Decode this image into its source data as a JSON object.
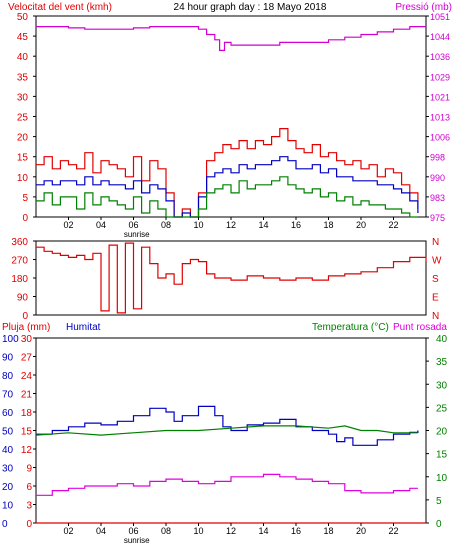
{
  "header": {
    "left_title": "Velocitat del vent (kmh)",
    "center_title": "24 hour graph day : 18 Mayo 2018",
    "right_title": "Pressió (mb)"
  },
  "colors": {
    "wind": "#e00000",
    "gust_green": "#008000",
    "blue": "#0000c0",
    "pressure": "#d000d0",
    "rain": "#e00000",
    "temp": "#008000",
    "dew": "#e000e0",
    "axis": "#000000"
  },
  "chart_data": [
    {
      "type": "line",
      "name": "wind-pressure",
      "ylabel": "Velocitat del vent (kmh)",
      "y_ticks": [
        "0",
        "5",
        "10",
        "15",
        "20",
        "25",
        "30",
        "35",
        "40",
        "45",
        "50"
      ],
      "ylim": [
        0,
        50
      ],
      "y2label": "Pressió (mb)",
      "y2_ticks": [
        "975",
        "983",
        "990",
        "998",
        "1006",
        "1013",
        "1021",
        "1029",
        "1036",
        "1044",
        "1051"
      ],
      "y2lim": [
        975,
        1051
      ],
      "x_ticks": [
        "02",
        "04",
        "06",
        "08",
        "10",
        "12",
        "14",
        "16",
        "18",
        "20",
        "22"
      ],
      "x_extra_label": "sunrise",
      "xlim": [
        0,
        24
      ],
      "series": [
        {
          "role": "wind_gust",
          "color": "red",
          "x": [
            0,
            0.5,
            1,
            1.5,
            2,
            2.5,
            3,
            3.5,
            4,
            4.5,
            5,
            5.5,
            6,
            6.5,
            7,
            7.5,
            8,
            8.5,
            9,
            9.5,
            10,
            10.5,
            11,
            11.5,
            12,
            12.5,
            13,
            13.5,
            14,
            14.5,
            15,
            15.5,
            16,
            16.5,
            17,
            17.5,
            18,
            18.5,
            19,
            19.5,
            20,
            20.5,
            21,
            21.5,
            22,
            22.5,
            23,
            23.5
          ],
          "y": [
            13,
            15,
            12,
            14,
            13,
            12,
            16,
            11,
            14,
            13,
            12,
            10,
            15,
            9,
            14,
            12,
            6,
            0,
            2,
            0,
            6,
            14,
            16,
            18,
            17,
            19,
            17,
            19,
            18,
            20,
            22,
            19,
            17,
            16,
            18,
            15,
            16,
            14,
            13,
            14,
            12,
            13,
            10,
            12,
            11,
            8,
            6,
            2
          ]
        },
        {
          "role": "wind_avg",
          "color": "blue",
          "x": [
            0,
            0.5,
            1,
            1.5,
            2,
            2.5,
            3,
            3.5,
            4,
            4.5,
            5,
            5.5,
            6,
            6.5,
            7,
            7.5,
            8,
            8.5,
            9,
            9.5,
            10,
            10.5,
            11,
            11.5,
            12,
            12.5,
            13,
            13.5,
            14,
            14.5,
            15,
            15.5,
            16,
            16.5,
            17,
            17.5,
            18,
            18.5,
            19,
            19.5,
            20,
            20.5,
            21,
            21.5,
            22,
            22.5,
            23,
            23.5
          ],
          "y": [
            8,
            9,
            8,
            9,
            9,
            8,
            10,
            8,
            9,
            8,
            8,
            7,
            9,
            6,
            8,
            7,
            4,
            0,
            1,
            0,
            5,
            10,
            11,
            12,
            11,
            13,
            12,
            13,
            13,
            14,
            15,
            14,
            12,
            12,
            13,
            11,
            12,
            10,
            10,
            9,
            9,
            9,
            8,
            8,
            7,
            6,
            4,
            1
          ]
        },
        {
          "role": "wind_lull",
          "color": "green",
          "x": [
            0,
            0.5,
            1,
            1.5,
            2,
            2.5,
            3,
            3.5,
            4,
            4.5,
            5,
            5.5,
            6,
            6.5,
            7,
            7.5,
            8,
            8.5,
            9,
            9.5,
            10,
            10.5,
            11,
            11.5,
            12,
            12.5,
            13,
            13.5,
            14,
            14.5,
            15,
            15.5,
            16,
            16.5,
            17,
            17.5,
            18,
            18.5,
            19,
            19.5,
            20,
            20.5,
            21,
            21.5,
            22,
            22.5,
            23,
            23.5
          ],
          "y": [
            4,
            6,
            3,
            5,
            5,
            2,
            6,
            3,
            5,
            4,
            3,
            2,
            5,
            1,
            4,
            2,
            0,
            0,
            0,
            0,
            2,
            6,
            7,
            8,
            6,
            9,
            7,
            8,
            8,
            9,
            10,
            8,
            7,
            6,
            7,
            5,
            6,
            4,
            5,
            3,
            4,
            3,
            3,
            2,
            2,
            1,
            0,
            0
          ]
        },
        {
          "role": "pressure",
          "color": "magenta",
          "x": [
            0,
            1,
            2,
            3,
            4,
            5,
            6,
            7,
            8,
            9,
            10,
            10.5,
            11,
            11.3,
            11.6,
            12,
            13,
            14,
            15,
            16,
            17,
            18,
            19,
            20,
            21,
            22,
            23,
            24
          ],
          "y": [
            1047,
            1047,
            1046.5,
            1046,
            1046,
            1046,
            1046.5,
            1047,
            1047,
            1047,
            1046,
            1044,
            1042,
            1038,
            1041,
            1040,
            1040,
            1040,
            1041,
            1041,
            1041,
            1042,
            1043,
            1044,
            1045,
            1046,
            1047,
            1047
          ]
        }
      ]
    },
    {
      "type": "line",
      "name": "wind-direction",
      "y_ticks": [
        "360",
        "270",
        "180",
        "90",
        "0"
      ],
      "ylim": [
        0,
        360
      ],
      "y2_ticks": [
        "N",
        "W",
        "S",
        "E",
        "N"
      ],
      "xlim": [
        0,
        24
      ],
      "series": [
        {
          "role": "direction",
          "color": "red",
          "x": [
            0,
            0.5,
            1,
            1.5,
            2,
            2.5,
            3,
            3.5,
            4,
            4.5,
            5,
            5.5,
            6,
            6.5,
            7,
            7.5,
            8,
            8.5,
            9,
            9.5,
            10,
            10.5,
            11,
            12,
            13,
            14,
            15,
            16,
            17,
            18,
            19,
            20,
            21,
            22,
            23,
            24
          ],
          "y": [
            330,
            310,
            300,
            290,
            280,
            290,
            270,
            300,
            20,
            340,
            10,
            350,
            30,
            330,
            250,
            180,
            200,
            150,
            250,
            270,
            260,
            200,
            180,
            170,
            190,
            180,
            170,
            180,
            170,
            190,
            200,
            210,
            230,
            260,
            280,
            260
          ]
        }
      ]
    },
    {
      "type": "line",
      "name": "rain-humidity-temp",
      "rain_label": "Pluja (mm)",
      "humidity_label": "Humitat",
      "temp_label": "Temperatura (°C)",
      "dew_label": "Punt rosada",
      "humidity_ticks": [
        "0",
        "10",
        "20",
        "30",
        "40",
        "50",
        "60",
        "70",
        "80",
        "90",
        "100"
      ],
      "rain_ticks": [
        "0",
        "3",
        "6",
        "9",
        "12",
        "15",
        "18",
        "21",
        "24",
        "27",
        "30"
      ],
      "temp_ticks": [
        "0",
        "5",
        "10",
        "15",
        "20",
        "25",
        "30",
        "35",
        "40"
      ],
      "xlim": [
        0,
        24
      ],
      "x_ticks": [
        "02",
        "04",
        "06",
        "08",
        "10",
        "12",
        "14",
        "16",
        "18",
        "20",
        "22"
      ],
      "x_extra_label": "sunrise",
      "series": [
        {
          "role": "humidity",
          "color": "blue",
          "x": [
            0,
            1,
            2,
            3,
            4,
            5,
            6,
            7,
            8,
            8.5,
            9,
            10,
            11,
            11.5,
            12,
            13,
            14,
            15,
            16,
            17,
            18,
            18.5,
            19,
            19.5,
            20,
            21,
            22,
            23,
            23.5
          ],
          "y": [
            48,
            50,
            52,
            54,
            53,
            55,
            58,
            62,
            60,
            55,
            58,
            63,
            58,
            52,
            50,
            53,
            54,
            56,
            52,
            50,
            48,
            44,
            46,
            42,
            42,
            45,
            48,
            49,
            50
          ]
        },
        {
          "role": "temp",
          "color": "green",
          "x": [
            0,
            2,
            4,
            6,
            8,
            10,
            12,
            14,
            16,
            18,
            19,
            20,
            21,
            22,
            23,
            23.5
          ],
          "y": [
            19,
            19.5,
            19,
            19.5,
            20,
            20,
            20.5,
            21,
            21,
            20.5,
            21,
            20,
            20,
            19.5,
            19.5,
            19.5
          ]
        },
        {
          "role": "dew",
          "color": "magenta",
          "x": [
            0,
            1,
            2,
            3,
            4,
            5,
            6,
            7,
            8,
            9,
            10,
            11,
            12,
            13,
            14,
            15,
            16,
            17,
            18,
            19,
            20,
            21,
            22,
            23,
            23.5
          ],
          "y": [
            6,
            7,
            7.5,
            8,
            8,
            8.5,
            8,
            9,
            9.5,
            9,
            8.5,
            9,
            10,
            10,
            10.5,
            10,
            9.5,
            9,
            8.5,
            7,
            6.5,
            6.5,
            7,
            7.5,
            7.5
          ]
        },
        {
          "role": "rain",
          "color": "red",
          "x": [
            0,
            24
          ],
          "y": [
            0,
            0
          ]
        }
      ]
    }
  ]
}
